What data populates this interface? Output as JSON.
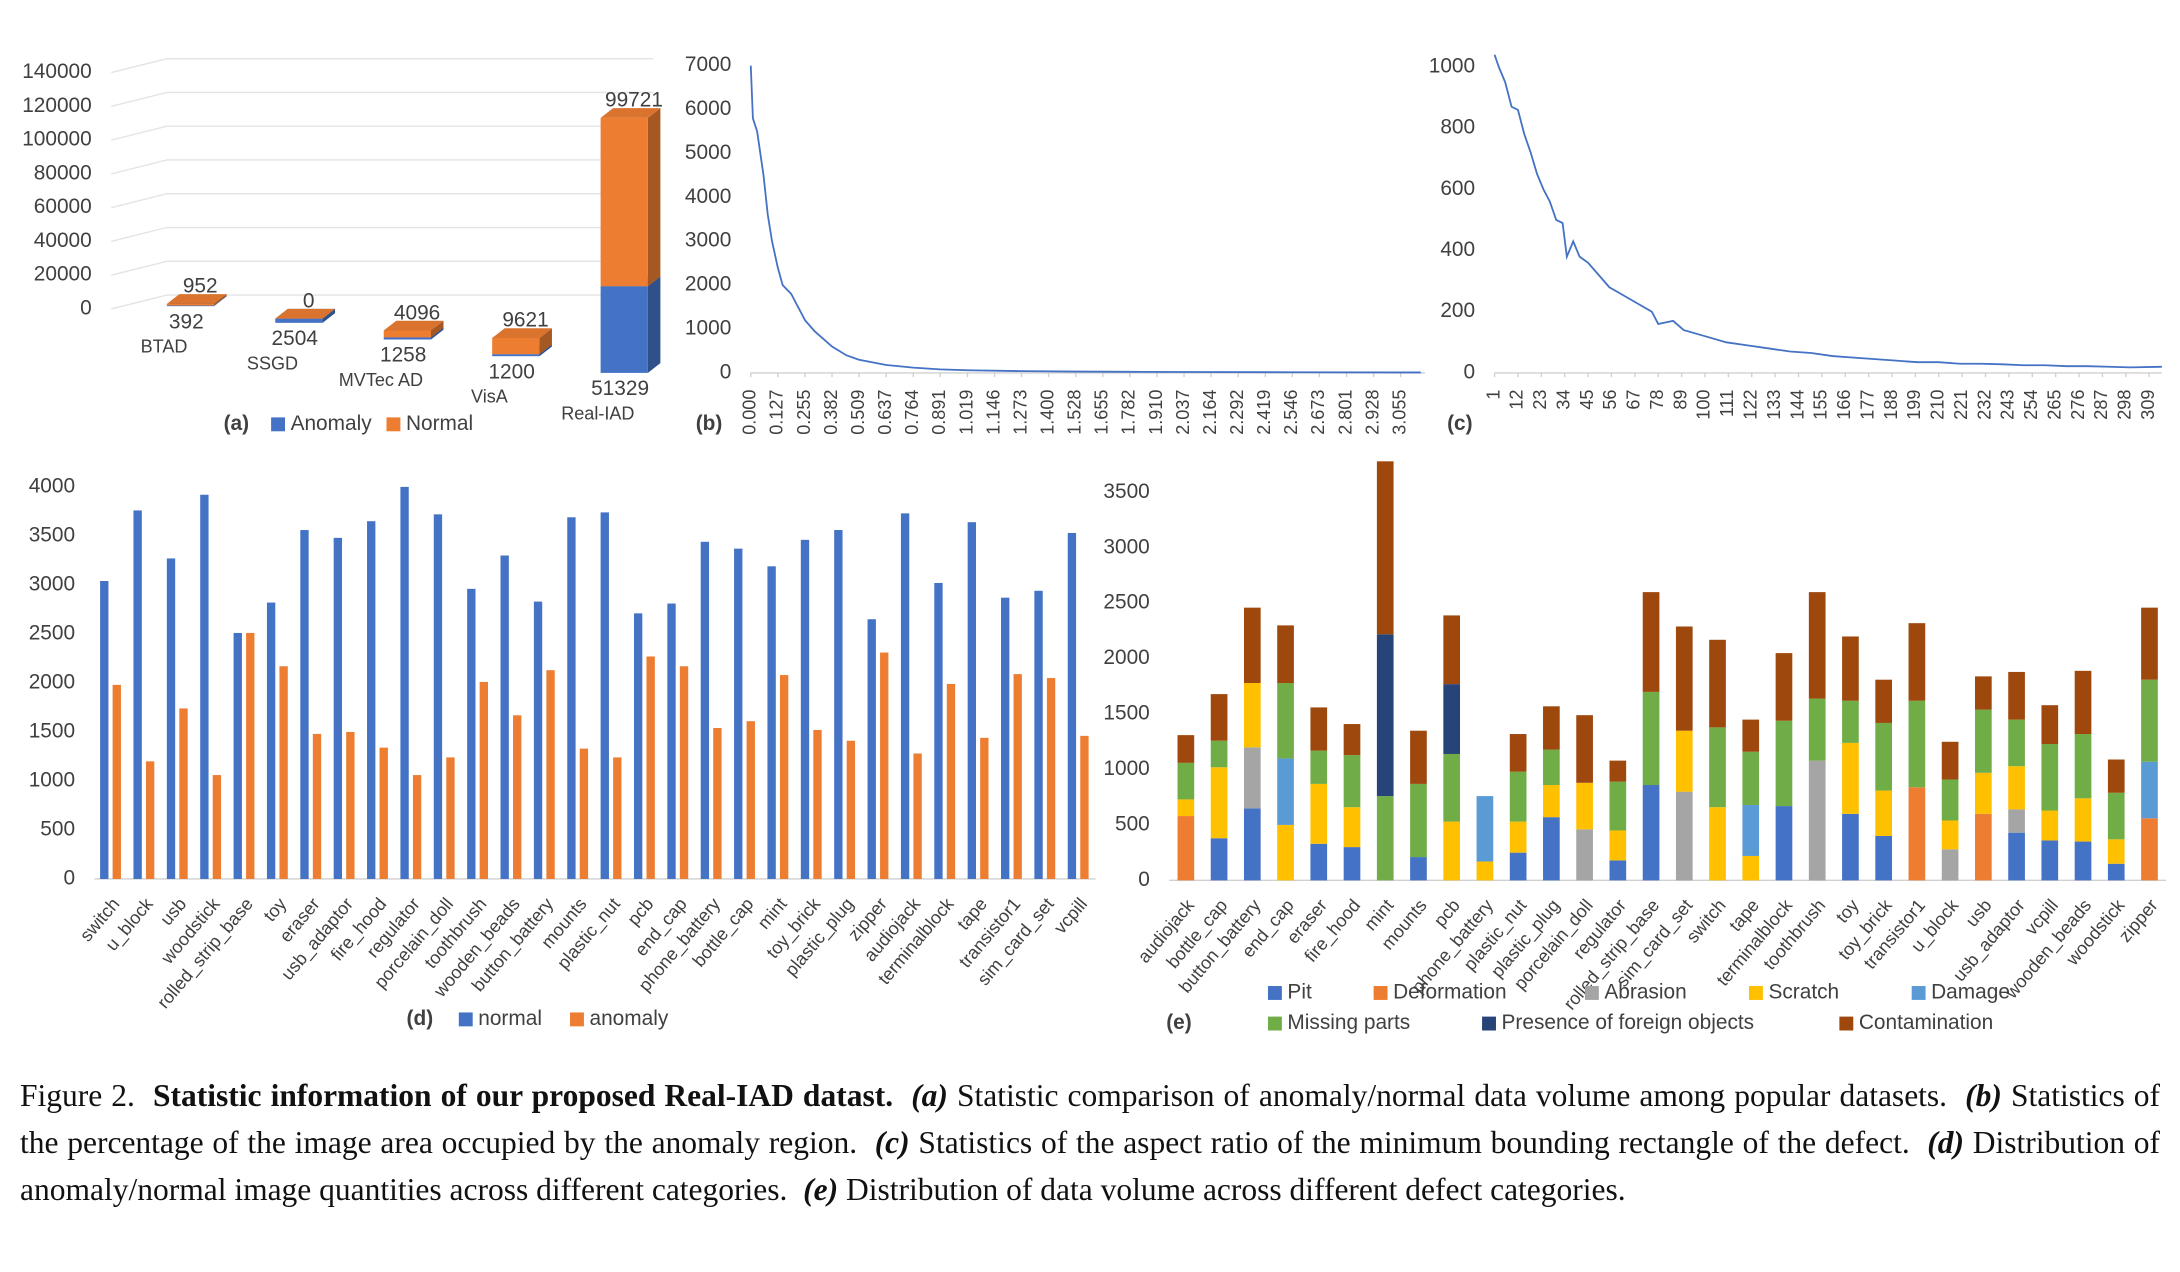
{
  "chart_data": [
    {
      "type": "bar3d",
      "label": "(a)",
      "categories": [
        "BTAD",
        "SSGD",
        "MVTec AD",
        "VisA",
        "Real-IAD"
      ],
      "series": [
        {
          "name": "Anomaly",
          "color": "#4472c4",
          "values": [
            392,
            2504,
            1258,
            1200,
            51329
          ]
        },
        {
          "name": "Normal",
          "color": "#ed7d31",
          "values": [
            952,
            0,
            4096,
            9621,
            99721
          ]
        }
      ],
      "ylim": [
        0,
        140000
      ],
      "yticks": [
        0,
        20000,
        40000,
        60000,
        80000,
        100000,
        120000,
        140000
      ],
      "grid": true
    },
    {
      "type": "line",
      "label": "(b)",
      "color": "#4472c4",
      "x": [
        0,
        0.01,
        0.03,
        0.06,
        0.08,
        0.1,
        0.127,
        0.15,
        0.19,
        0.255,
        0.3,
        0.382,
        0.45,
        0.509,
        0.637,
        0.764,
        0.891,
        1.019,
        1.273,
        1.528,
        1.782,
        2.037,
        2.546,
        3.055,
        3.15
      ],
      "values": [
        7000,
        5800,
        5500,
        4500,
        3600,
        3000,
        2400,
        2000,
        1800,
        1200,
        950,
        600,
        400,
        300,
        180,
        120,
        80,
        60,
        40,
        30,
        25,
        20,
        15,
        10,
        10
      ],
      "xlim": [
        0,
        3.17
      ],
      "ylim": [
        0,
        7000
      ],
      "yticks": [
        0,
        1000,
        2000,
        3000,
        4000,
        5000,
        6000,
        7000
      ],
      "xticks": [
        {
          "value": 0,
          "label": "0.000"
        },
        0.127,
        0.255,
        0.382,
        0.509,
        0.637,
        0.764,
        0.891,
        1.019,
        1.146,
        1.273,
        {
          "value": 1.4,
          "label": "1.400"
        },
        1.528,
        1.655,
        1.782,
        {
          "value": 1.91,
          "label": "1.910"
        },
        2.037,
        2.164,
        2.292,
        2.419,
        2.546,
        2.673,
        2.801,
        2.928,
        3.055
      ],
      "grid": false
    },
    {
      "type": "line",
      "label": "(c)",
      "color": "#4472c4",
      "x": [
        1,
        3,
        6,
        9,
        12,
        15,
        18,
        21,
        24,
        27,
        30,
        33,
        35,
        38,
        41,
        45,
        50,
        55,
        60,
        65,
        70,
        75,
        78,
        85,
        90,
        100,
        110,
        120,
        130,
        140,
        150,
        160,
        170,
        180,
        190,
        200,
        210,
        220,
        230,
        240,
        250,
        260,
        270,
        280,
        290,
        300,
        315
      ],
      "values": [
        1040,
        1000,
        950,
        870,
        860,
        780,
        720,
        650,
        600,
        560,
        500,
        490,
        380,
        430,
        380,
        360,
        320,
        280,
        260,
        240,
        220,
        200,
        160,
        170,
        140,
        120,
        100,
        90,
        80,
        70,
        65,
        55,
        50,
        45,
        40,
        35,
        35,
        30,
        30,
        28,
        25,
        25,
        22,
        22,
        20,
        18,
        20
      ],
      "xlim": [
        1,
        315
      ],
      "ylim": [
        0,
        1050
      ],
      "yticks": [
        0,
        200,
        400,
        600,
        800,
        1000
      ],
      "xticks": [
        1,
        12,
        23,
        34,
        45,
        56,
        67,
        78,
        89,
        100,
        111,
        122,
        133,
        144,
        155,
        166,
        177,
        188,
        199,
        210,
        221,
        232,
        243,
        254,
        265,
        276,
        287,
        298,
        309
      ],
      "grid": false
    },
    {
      "type": "bar",
      "label": "(d)",
      "categories": [
        "switch",
        "u_block",
        "usb",
        "woodstick",
        "rolled_strip_base",
        "toy",
        "eraser",
        "usb_adaptor",
        "fire_hood",
        "regulator",
        "porcelain_doll",
        "toothbrush",
        "wooden_beads",
        "button_battery",
        "mounts",
        "plastic_nut",
        "pcb",
        "end_cap",
        "phone_battery",
        "bottle_cap",
        "mint",
        "toy_brick",
        "plastic_plug",
        "zipper",
        "audiojack",
        "terminalblock",
        "tape",
        "transistor1",
        "sim_card_set",
        "vcpill"
      ],
      "series": [
        {
          "name": "normal",
          "color": "#4472c4",
          "values": [
            3040,
            3760,
            3270,
            3920,
            2510,
            2820,
            3560,
            3480,
            3650,
            4000,
            3720,
            2960,
            3300,
            2830,
            3690,
            3740,
            2710,
            2810,
            3440,
            3370,
            3190,
            3460,
            3560,
            2650,
            3730,
            3020,
            3640,
            2870,
            2940,
            3530
          ]
        },
        {
          "name": "anomaly",
          "color": "#ed7d31",
          "values": [
            1980,
            1200,
            1740,
            1060,
            2510,
            2170,
            1480,
            1500,
            1340,
            1060,
            1240,
            2010,
            1670,
            2130,
            1330,
            1240,
            2270,
            2170,
            1540,
            1610,
            2080,
            1520,
            1410,
            2310,
            1280,
            1990,
            1440,
            2090,
            2050,
            1460
          ]
        }
      ],
      "ylim": [
        0,
        4000
      ],
      "yticks": [
        0,
        500,
        1000,
        1500,
        2000,
        2500,
        3000,
        3500,
        4000
      ],
      "stacked": false,
      "grid": false
    },
    {
      "type": "bar",
      "label": "(e)",
      "categories": [
        "audiojack",
        "bottle_cap",
        "button_battery",
        "end_cap",
        "eraser",
        "fire_hood",
        "mint",
        "mounts",
        "pcb",
        "phone_battery",
        "plastic_nut",
        "plastic_plug",
        "porcelain_doll",
        "regulator",
        "rolled_strip_base",
        "sim_card_set",
        "switch",
        "tape",
        "terminalblock",
        "toothbrush",
        "toy",
        "toy_brick",
        "transistor1",
        "u_block",
        "usb",
        "usb_adaptor",
        "vcpill",
        "wooden_beads",
        "woodstick",
        "zipper"
      ],
      "series": [
        {
          "name": "Pit",
          "color": "#4472c4",
          "values": [
            0,
            380,
            650,
            0,
            330,
            300,
            0,
            210,
            0,
            0,
            250,
            570,
            0,
            180,
            860,
            0,
            0,
            0,
            670,
            0,
            600,
            400,
            0,
            0,
            0,
            430,
            360,
            350,
            150,
            0
          ]
        },
        {
          "name": "Deformation",
          "color": "#ed7d31",
          "values": [
            580,
            0,
            0,
            0,
            0,
            0,
            0,
            0,
            0,
            0,
            0,
            0,
            0,
            0,
            0,
            0,
            0,
            0,
            0,
            0,
            0,
            0,
            840,
            0,
            600,
            0,
            0,
            0,
            0,
            560
          ]
        },
        {
          "name": "Abrasion",
          "color": "#a5a5a5",
          "values": [
            0,
            0,
            550,
            0,
            0,
            0,
            0,
            0,
            0,
            0,
            0,
            0,
            460,
            0,
            0,
            800,
            0,
            0,
            0,
            1080,
            0,
            0,
            0,
            280,
            0,
            210,
            0,
            0,
            0,
            0
          ]
        },
        {
          "name": "Scratch",
          "color": "#ffc000",
          "values": [
            150,
            640,
            580,
            500,
            540,
            360,
            0,
            0,
            530,
            170,
            280,
            290,
            420,
            270,
            0,
            550,
            660,
            220,
            0,
            0,
            640,
            410,
            0,
            260,
            370,
            390,
            270,
            390,
            220,
            0
          ]
        },
        {
          "name": "Damage",
          "color": "#5b9bd5",
          "values": [
            0,
            0,
            0,
            600,
            0,
            0,
            0,
            0,
            0,
            590,
            0,
            0,
            0,
            0,
            0,
            0,
            0,
            460,
            0,
            0,
            0,
            0,
            0,
            0,
            0,
            0,
            0,
            0,
            0,
            510
          ]
        },
        {
          "name": "Missing parts",
          "color": "#70ad47",
          "values": [
            330,
            240,
            0,
            680,
            300,
            470,
            760,
            660,
            610,
            0,
            450,
            320,
            0,
            440,
            840,
            0,
            720,
            480,
            770,
            560,
            380,
            610,
            780,
            370,
            570,
            420,
            600,
            580,
            420,
            740
          ]
        },
        {
          "name": "Presence of foreign objects",
          "color": "#264478",
          "values": [
            0,
            0,
            0,
            0,
            0,
            0,
            1460,
            0,
            630,
            0,
            0,
            0,
            0,
            0,
            0,
            0,
            0,
            0,
            0,
            0,
            0,
            0,
            0,
            0,
            0,
            0,
            0,
            0,
            0,
            0
          ]
        },
        {
          "name": "Contamination",
          "color": "#9e480e",
          "values": [
            250,
            420,
            680,
            520,
            390,
            280,
            1560,
            480,
            620,
            0,
            340,
            390,
            610,
            190,
            900,
            940,
            790,
            290,
            610,
            960,
            580,
            390,
            700,
            340,
            300,
            430,
            350,
            570,
            300,
            650
          ]
        }
      ],
      "ylim": [
        0,
        3800
      ],
      "yticks": [
        0,
        500,
        1000,
        1500,
        2000,
        2500,
        3000,
        3500
      ],
      "stacked": true,
      "grid": false
    }
  ],
  "caption": {
    "label": "Figure 2.",
    "title": "Statistic information of our proposed Real-IAD datast.",
    "items": [
      {
        "tag": "(a)",
        "text": "Statistic comparison of anomaly/normal data volume among popular datasets."
      },
      {
        "tag": "(b)",
        "text": "Statistics of the percentage of the image area occupied by the anomaly region."
      },
      {
        "tag": "(c)",
        "text": "Statistics of the aspect ratio of the minimum bounding rectangle of the defect."
      },
      {
        "tag": "(d)",
        "text": "Distribution of anomaly/normal image quantities across different categories."
      },
      {
        "tag": "(e)",
        "text": "Distribution of data volume across different defect categories."
      }
    ]
  }
}
